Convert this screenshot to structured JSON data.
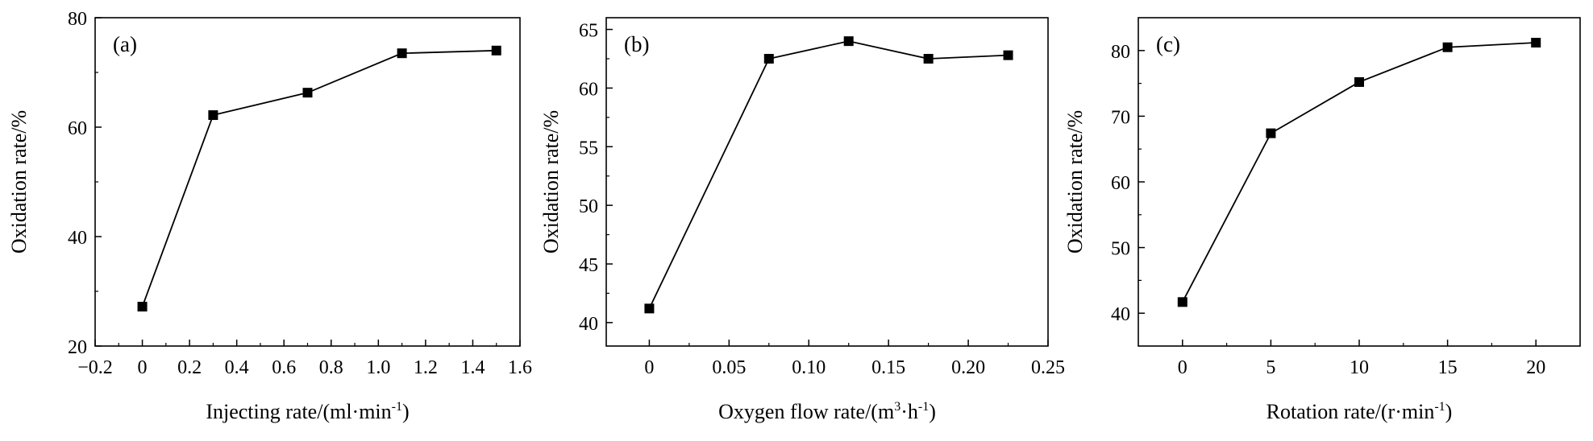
{
  "chart_data": [
    {
      "type": "line",
      "panel_label": "(a)",
      "xlabel": "Injecting rate/(ml·min",
      "xlabel_sup": "-1",
      "xlabel_end": ")",
      "ylabel": "Oxidation rate/%",
      "xlim": [
        -0.2,
        1.6
      ],
      "ylim": [
        20,
        80
      ],
      "xticks": [
        -0.2,
        0,
        0.2,
        0.4,
        0.6,
        0.8,
        1.0,
        1.2,
        1.4,
        1.6
      ],
      "xtick_labels": [
        "−0.2",
        "0",
        "0.2",
        "0.4",
        "0.6",
        "0.8",
        "1.0",
        "1.2",
        "1.4",
        "1.6"
      ],
      "yticks": [
        20,
        40,
        60,
        80
      ],
      "ytick_labels": [
        "20",
        "40",
        "60",
        "80"
      ],
      "series": [
        {
          "marker": "square",
          "color": "#000000",
          "x": [
            0,
            0.3,
            0.7,
            1.1,
            1.5
          ],
          "y": [
            27.2,
            62.2,
            66.3,
            73.5,
            74.0
          ]
        }
      ]
    },
    {
      "type": "line",
      "panel_label": "(b)",
      "xlabel": "Oxygen flow rate/(m",
      "xlabel_sup": "3",
      "xlabel_mid": "·h",
      "xlabel_sup2": "-1",
      "xlabel_end": ")",
      "ylabel": "Oxidation rate/%",
      "xlim": [
        -0.027,
        0.25
      ],
      "ylim": [
        38,
        66
      ],
      "xticks": [
        0,
        0.05,
        0.1,
        0.15,
        0.2,
        0.25
      ],
      "xtick_labels": [
        "0",
        "0.05",
        "0.10",
        "0.15",
        "0.20",
        "0.25"
      ],
      "yticks": [
        40,
        45,
        50,
        55,
        60,
        65
      ],
      "ytick_labels": [
        "40",
        "45",
        "50",
        "55",
        "60",
        "65"
      ],
      "series": [
        {
          "marker": "square",
          "color": "#000000",
          "x": [
            0,
            0.075,
            0.125,
            0.175,
            0.225
          ],
          "y": [
            41.2,
            62.5,
            64.0,
            62.5,
            62.8
          ]
        }
      ]
    },
    {
      "type": "line",
      "panel_label": "(c)",
      "xlabel": "Rotation rate/(r·min",
      "xlabel_sup": "-1",
      "xlabel_end": ")",
      "ylabel": "Oxidation rate/%",
      "xlim": [
        -2.5,
        22.5
      ],
      "ylim": [
        35,
        85
      ],
      "xticks": [
        0,
        5,
        10,
        15,
        20
      ],
      "xtick_labels": [
        "0",
        "5",
        "10",
        "15",
        "20"
      ],
      "yticks": [
        40,
        50,
        60,
        70,
        80
      ],
      "ytick_labels": [
        "40",
        "50",
        "60",
        "70",
        "80"
      ],
      "series": [
        {
          "marker": "square",
          "color": "#000000",
          "x": [
            0,
            5,
            10,
            15,
            20
          ],
          "y": [
            41.7,
            67.4,
            75.2,
            80.5,
            81.2
          ]
        }
      ]
    }
  ]
}
